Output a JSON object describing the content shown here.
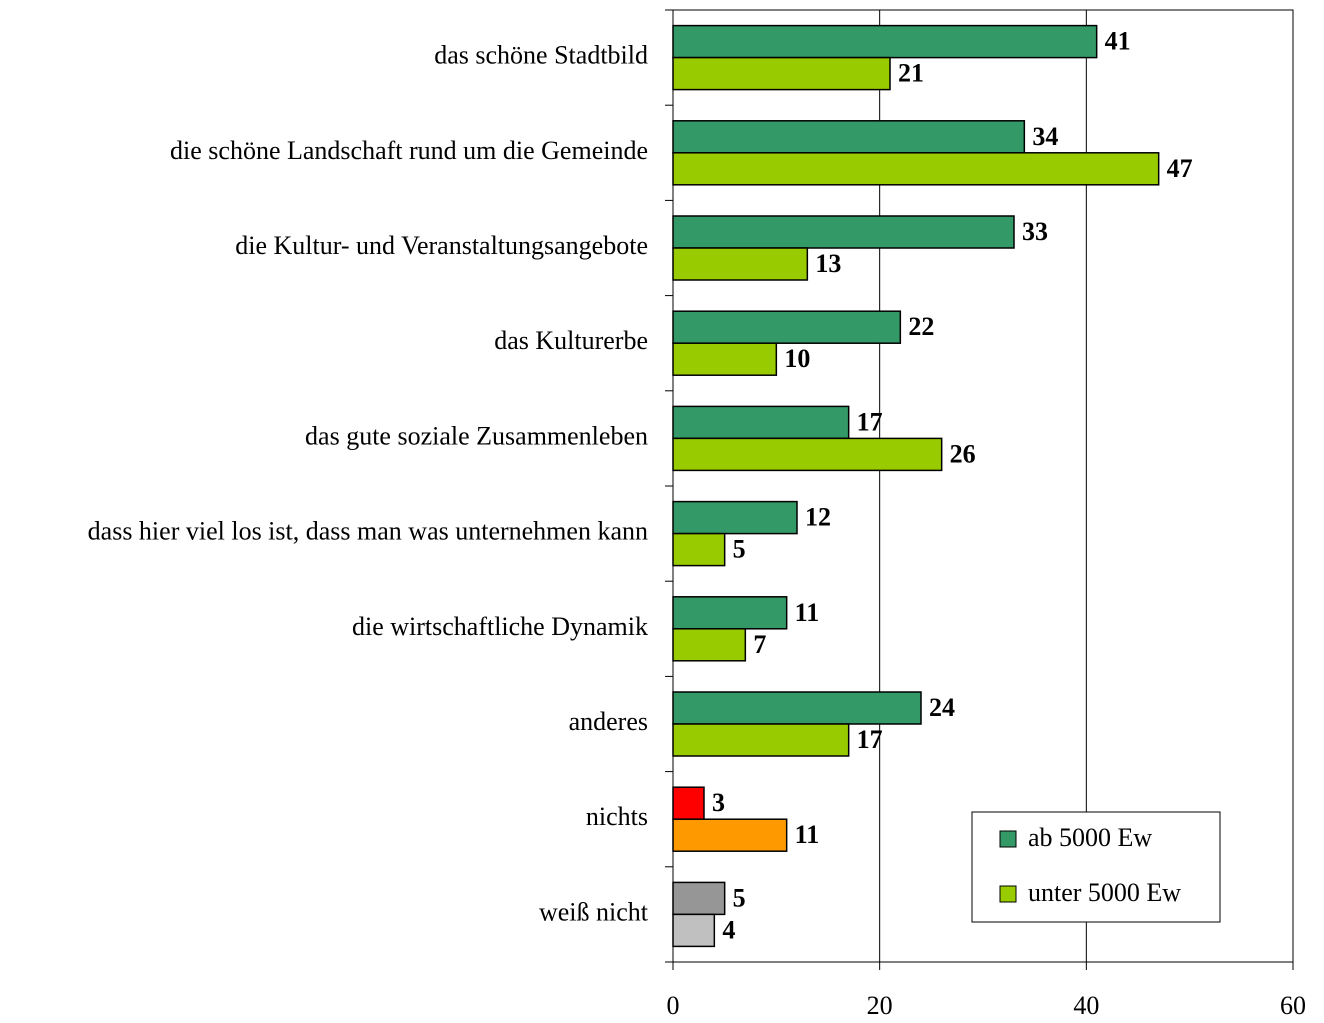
{
  "chart_data": {
    "type": "hbar",
    "categories": [
      "das schöne Stadtbild",
      "die schöne Landschaft rund um die Gemeinde",
      "die Kultur- und Veranstaltungsangebote",
      "das Kulturerbe",
      "das gute soziale Zusammenleben",
      "dass hier viel los ist, dass man was unternehmen kann",
      "die wirtschaftliche Dynamik",
      "anderes",
      "nichts",
      "weiß nicht"
    ],
    "series": [
      {
        "name": "ab 5000 Ew",
        "color": "#339966",
        "values": [
          41,
          34,
          33,
          22,
          17,
          12,
          11,
          24,
          3,
          5
        ],
        "colors": [
          "#339966",
          "#339966",
          "#339966",
          "#339966",
          "#339966",
          "#339966",
          "#339966",
          "#339966",
          "#ff0000",
          "#969696"
        ]
      },
      {
        "name": "unter 5000 Ew",
        "color": "#99cc00",
        "values": [
          21,
          47,
          13,
          10,
          26,
          5,
          7,
          17,
          11,
          4
        ],
        "colors": [
          "#99cc00",
          "#99cc00",
          "#99cc00",
          "#99cc00",
          "#99cc00",
          "#99cc00",
          "#99cc00",
          "#99cc00",
          "#ff9900",
          "#c0c0c0"
        ]
      }
    ],
    "xlim": [
      0,
      60
    ],
    "xticks": [
      0,
      20,
      40,
      60
    ],
    "grid": true,
    "legend": "lower right"
  }
}
